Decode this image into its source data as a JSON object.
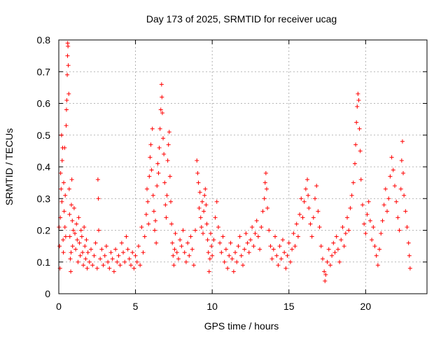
{
  "chart_data": {
    "type": "scatter",
    "title": "Day 173 of 2025, SRMTID for receiver ucag",
    "xlabel": "GPS time / hours",
    "ylabel": "SRMTID / TECUs",
    "xlim": [
      0,
      24
    ],
    "ylim": [
      0,
      0.8
    ],
    "xticks": [
      0,
      5,
      10,
      15,
      20
    ],
    "yticks": [
      0,
      0.1,
      0.2,
      0.3,
      0.4,
      0.5,
      0.6,
      0.7,
      0.8
    ],
    "grid": true,
    "marker": "+",
    "series": [
      {
        "name": "SRMTID",
        "color": "#ff0000",
        "points": [
          [
            0.02,
            0.21
          ],
          [
            0.05,
            0.15
          ],
          [
            0.08,
            0.08
          ],
          [
            0.1,
            0.24
          ],
          [
            0.12,
            0.38
          ],
          [
            0.15,
            0.33
          ],
          [
            0.18,
            0.5
          ],
          [
            0.2,
            0.29
          ],
          [
            0.22,
            0.42
          ],
          [
            0.25,
            0.46
          ],
          [
            0.28,
            0.17
          ],
          [
            0.3,
            0.13
          ],
          [
            0.32,
            0.35
          ],
          [
            0.35,
            0.26
          ],
          [
            0.38,
            0.46
          ],
          [
            0.4,
            0.21
          ],
          [
            0.42,
            0.31
          ],
          [
            0.45,
            0.18
          ],
          [
            0.48,
            0.53
          ],
          [
            0.5,
            0.58
          ],
          [
            0.52,
            0.61
          ],
          [
            0.55,
            0.69
          ],
          [
            0.57,
            0.75
          ],
          [
            0.58,
            0.79
          ],
          [
            0.6,
            0.78
          ],
          [
            0.62,
            0.72
          ],
          [
            0.65,
            0.63
          ],
          [
            0.68,
            0.33
          ],
          [
            0.7,
            0.25
          ],
          [
            0.72,
            0.18
          ],
          [
            0.75,
            0.11
          ],
          [
            0.78,
            0.07
          ],
          [
            0.8,
            0.13
          ],
          [
            0.82,
            0.28
          ],
          [
            0.85,
            0.36
          ],
          [
            0.88,
            0.23
          ],
          [
            0.9,
            0.15
          ],
          [
            0.95,
            0.2
          ],
          [
            1.0,
            0.27
          ],
          [
            1.05,
            0.19
          ],
          [
            1.1,
            0.14
          ],
          [
            1.15,
            0.22
          ],
          [
            1.2,
            0.17
          ],
          [
            1.25,
            0.1
          ],
          [
            1.3,
            0.24
          ],
          [
            1.35,
            0.16
          ],
          [
            1.4,
            0.12
          ],
          [
            1.45,
            0.2
          ],
          [
            1.5,
            0.18
          ],
          [
            1.55,
            0.13
          ],
          [
            1.6,
            0.09
          ],
          [
            1.65,
            0.21
          ],
          [
            1.7,
            0.15
          ],
          [
            1.75,
            0.11
          ],
          [
            1.8,
            0.17
          ],
          [
            1.85,
            0.08
          ],
          [
            1.9,
            0.13
          ],
          [
            2.0,
            0.1
          ],
          [
            2.1,
            0.14
          ],
          [
            2.2,
            0.09
          ],
          [
            2.3,
            0.12
          ],
          [
            2.4,
            0.16
          ],
          [
            2.5,
            0.08
          ],
          [
            2.55,
            0.36
          ],
          [
            2.58,
            0.3
          ],
          [
            2.6,
            0.2
          ],
          [
            2.7,
            0.11
          ],
          [
            2.8,
            0.14
          ],
          [
            2.9,
            0.09
          ],
          [
            3.0,
            0.12
          ],
          [
            3.1,
            0.15
          ],
          [
            3.2,
            0.1
          ],
          [
            3.3,
            0.08
          ],
          [
            3.4,
            0.13
          ],
          [
            3.5,
            0.11
          ],
          [
            3.6,
            0.07
          ],
          [
            3.7,
            0.14
          ],
          [
            3.8,
            0.1
          ],
          [
            3.9,
            0.12
          ],
          [
            4.0,
            0.09
          ],
          [
            4.1,
            0.16
          ],
          [
            4.2,
            0.13
          ],
          [
            4.3,
            0.1
          ],
          [
            4.4,
            0.18
          ],
          [
            4.5,
            0.14
          ],
          [
            4.6,
            0.11
          ],
          [
            4.7,
            0.09
          ],
          [
            4.8,
            0.13
          ],
          [
            4.9,
            0.08
          ],
          [
            5.0,
            0.12
          ],
          [
            5.1,
            0.1
          ],
          [
            5.2,
            0.15
          ],
          [
            5.3,
            0.09
          ],
          [
            5.4,
            0.21
          ],
          [
            5.5,
            0.13
          ],
          [
            5.6,
            0.18
          ],
          [
            5.7,
            0.25
          ],
          [
            5.75,
            0.33
          ],
          [
            5.8,
            0.29
          ],
          [
            5.85,
            0.22
          ],
          [
            5.9,
            0.37
          ],
          [
            5.95,
            0.43
          ],
          [
            6.0,
            0.47
          ],
          [
            6.05,
            0.39
          ],
          [
            6.1,
            0.52
          ],
          [
            6.15,
            0.31
          ],
          [
            6.2,
            0.26
          ],
          [
            6.25,
            0.2
          ],
          [
            6.3,
            0.23
          ],
          [
            6.35,
            0.16
          ],
          [
            6.4,
            0.34
          ],
          [
            6.45,
            0.41
          ],
          [
            6.5,
            0.38
          ],
          [
            6.55,
            0.46
          ],
          [
            6.6,
            0.52
          ],
          [
            6.65,
            0.58
          ],
          [
            6.7,
            0.66
          ],
          [
            6.72,
            0.62
          ],
          [
            6.75,
            0.57
          ],
          [
            6.8,
            0.49
          ],
          [
            6.85,
            0.44
          ],
          [
            6.9,
            0.35
          ],
          [
            6.95,
            0.28
          ],
          [
            7.0,
            0.24
          ],
          [
            7.05,
            0.31
          ],
          [
            7.1,
            0.42
          ],
          [
            7.15,
            0.47
          ],
          [
            7.2,
            0.51
          ],
          [
            7.25,
            0.37
          ],
          [
            7.3,
            0.29
          ],
          [
            7.35,
            0.22
          ],
          [
            7.4,
            0.16
          ],
          [
            7.45,
            0.12
          ],
          [
            7.5,
            0.09
          ],
          [
            7.55,
            0.14
          ],
          [
            7.6,
            0.19
          ],
          [
            7.7,
            0.13
          ],
          [
            7.8,
            0.11
          ],
          [
            7.9,
            0.17
          ],
          [
            8.0,
            0.15
          ],
          [
            8.1,
            0.2
          ],
          [
            8.2,
            0.13
          ],
          [
            8.3,
            0.1
          ],
          [
            8.4,
            0.16
          ],
          [
            8.5,
            0.12
          ],
          [
            8.6,
            0.18
          ],
          [
            8.7,
            0.14
          ],
          [
            8.8,
            0.09
          ],
          [
            8.9,
            0.2
          ],
          [
            9.0,
            0.42
          ],
          [
            9.05,
            0.38
          ],
          [
            9.1,
            0.35
          ],
          [
            9.15,
            0.27
          ],
          [
            9.2,
            0.32
          ],
          [
            9.25,
            0.24
          ],
          [
            9.3,
            0.21
          ],
          [
            9.35,
            0.29
          ],
          [
            9.4,
            0.19
          ],
          [
            9.45,
            0.26
          ],
          [
            9.5,
            0.31
          ],
          [
            9.55,
            0.33
          ],
          [
            9.6,
            0.28
          ],
          [
            9.65,
            0.22
          ],
          [
            9.7,
            0.17
          ],
          [
            9.75,
            0.13
          ],
          [
            9.8,
            0.07
          ],
          [
            9.85,
            0.11
          ],
          [
            9.9,
            0.19
          ],
          [
            9.95,
            0.15
          ],
          [
            10.0,
            0.12
          ],
          [
            10.1,
            0.17
          ],
          [
            10.2,
            0.24
          ],
          [
            10.3,
            0.29
          ],
          [
            10.4,
            0.21
          ],
          [
            10.5,
            0.16
          ],
          [
            10.6,
            0.13
          ],
          [
            10.7,
            0.18
          ],
          [
            10.8,
            0.1
          ],
          [
            10.9,
            0.14
          ],
          [
            11.0,
            0.08
          ],
          [
            11.1,
            0.12
          ],
          [
            11.2,
            0.16
          ],
          [
            11.3,
            0.11
          ],
          [
            11.4,
            0.07
          ],
          [
            11.5,
            0.13
          ],
          [
            11.6,
            0.1
          ],
          [
            11.7,
            0.15
          ],
          [
            11.8,
            0.18
          ],
          [
            11.9,
            0.12
          ],
          [
            12.0,
            0.09
          ],
          [
            12.1,
            0.14
          ],
          [
            12.2,
            0.19
          ],
          [
            12.3,
            0.16
          ],
          [
            12.4,
            0.13
          ],
          [
            12.5,
            0.17
          ],
          [
            12.6,
            0.21
          ],
          [
            12.7,
            0.15
          ],
          [
            12.8,
            0.19
          ],
          [
            12.9,
            0.23
          ],
          [
            13.0,
            0.18
          ],
          [
            13.1,
            0.14
          ],
          [
            13.2,
            0.21
          ],
          [
            13.3,
            0.26
          ],
          [
            13.4,
            0.3
          ],
          [
            13.45,
            0.35
          ],
          [
            13.5,
            0.38
          ],
          [
            13.55,
            0.33
          ],
          [
            13.6,
            0.27
          ],
          [
            13.7,
            0.2
          ],
          [
            13.8,
            0.15
          ],
          [
            13.9,
            0.11
          ],
          [
            14.0,
            0.14
          ],
          [
            14.1,
            0.18
          ],
          [
            14.2,
            0.12
          ],
          [
            14.3,
            0.09
          ],
          [
            14.4,
            0.15
          ],
          [
            14.5,
            0.11
          ],
          [
            14.6,
            0.17
          ],
          [
            14.7,
            0.13
          ],
          [
            14.8,
            0.08
          ],
          [
            14.9,
            0.12
          ],
          [
            15.0,
            0.16
          ],
          [
            15.1,
            0.1
          ],
          [
            15.2,
            0.14
          ],
          [
            15.3,
            0.19
          ],
          [
            15.4,
            0.15
          ],
          [
            15.5,
            0.22
          ],
          [
            15.6,
            0.18
          ],
          [
            15.7,
            0.25
          ],
          [
            15.8,
            0.3
          ],
          [
            15.9,
            0.24
          ],
          [
            16.0,
            0.29
          ],
          [
            16.1,
            0.33
          ],
          [
            16.2,
            0.36
          ],
          [
            16.25,
            0.31
          ],
          [
            16.3,
            0.27
          ],
          [
            16.4,
            0.22
          ],
          [
            16.5,
            0.18
          ],
          [
            16.6,
            0.24
          ],
          [
            16.7,
            0.3
          ],
          [
            16.8,
            0.34
          ],
          [
            16.9,
            0.26
          ],
          [
            17.0,
            0.21
          ],
          [
            17.1,
            0.15
          ],
          [
            17.2,
            0.11
          ],
          [
            17.3,
            0.07
          ],
          [
            17.35,
            0.04
          ],
          [
            17.4,
            0.06
          ],
          [
            17.5,
            0.1
          ],
          [
            17.6,
            0.14
          ],
          [
            17.7,
            0.09
          ],
          [
            17.8,
            0.12
          ],
          [
            17.9,
            0.16
          ],
          [
            18.0,
            0.13
          ],
          [
            18.1,
            0.18
          ],
          [
            18.2,
            0.14
          ],
          [
            18.3,
            0.1
          ],
          [
            18.4,
            0.17
          ],
          [
            18.5,
            0.21
          ],
          [
            18.6,
            0.15
          ],
          [
            18.7,
            0.19
          ],
          [
            18.8,
            0.24
          ],
          [
            18.9,
            0.2
          ],
          [
            19.0,
            0.27
          ],
          [
            19.1,
            0.31
          ],
          [
            19.2,
            0.35
          ],
          [
            19.3,
            0.41
          ],
          [
            19.35,
            0.47
          ],
          [
            19.4,
            0.54
          ],
          [
            19.45,
            0.59
          ],
          [
            19.5,
            0.63
          ],
          [
            19.55,
            0.61
          ],
          [
            19.6,
            0.52
          ],
          [
            19.65,
            0.45
          ],
          [
            19.7,
            0.36
          ],
          [
            19.8,
            0.28
          ],
          [
            19.9,
            0.22
          ],
          [
            20.0,
            0.19
          ],
          [
            20.1,
            0.25
          ],
          [
            20.2,
            0.29
          ],
          [
            20.3,
            0.23
          ],
          [
            20.4,
            0.17
          ],
          [
            20.5,
            0.21
          ],
          [
            20.6,
            0.15
          ],
          [
            20.7,
            0.12
          ],
          [
            20.8,
            0.09
          ],
          [
            20.9,
            0.14
          ],
          [
            21.0,
            0.19
          ],
          [
            21.1,
            0.23
          ],
          [
            21.2,
            0.28
          ],
          [
            21.3,
            0.33
          ],
          [
            21.4,
            0.26
          ],
          [
            21.5,
            0.3
          ],
          [
            21.6,
            0.37
          ],
          [
            21.7,
            0.43
          ],
          [
            21.8,
            0.39
          ],
          [
            21.9,
            0.34
          ],
          [
            22.0,
            0.29
          ],
          [
            22.1,
            0.24
          ],
          [
            22.2,
            0.2
          ],
          [
            22.3,
            0.33
          ],
          [
            22.35,
            0.42
          ],
          [
            22.4,
            0.48
          ],
          [
            22.45,
            0.38
          ],
          [
            22.5,
            0.31
          ],
          [
            22.6,
            0.26
          ],
          [
            22.7,
            0.21
          ],
          [
            22.8,
            0.16
          ],
          [
            22.85,
            0.12
          ],
          [
            22.9,
            0.08
          ]
        ]
      }
    ]
  }
}
